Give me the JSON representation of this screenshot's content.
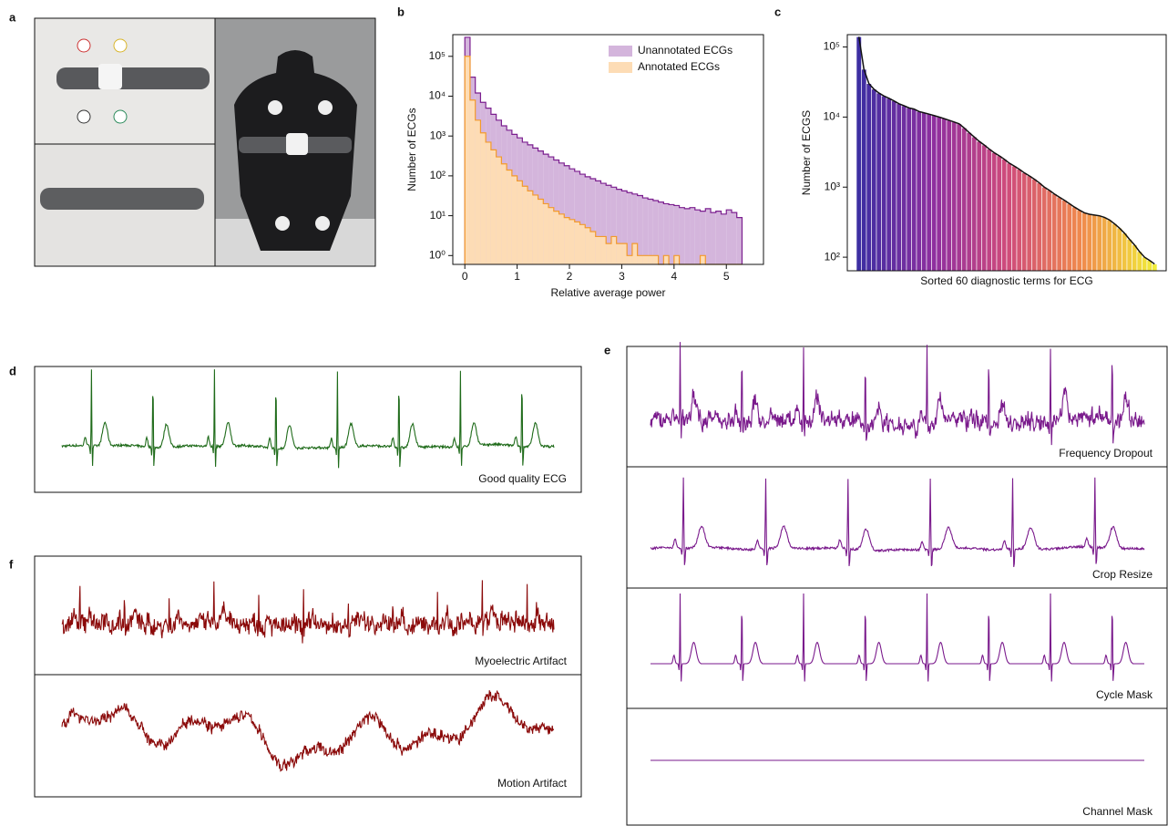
{
  "panel_letters": [
    "a",
    "b",
    "c",
    "d",
    "e",
    "f"
  ],
  "chart_data": [
    {
      "type": "histogram",
      "xlabel": "Relative average power",
      "ylabel": "Number of ECGs",
      "log_y": true,
      "legend": "upper right",
      "xlim": [
        -0.23,
        5.71
      ],
      "ylim": [
        0.6,
        350000
      ],
      "xticks": [
        0,
        1,
        2,
        3,
        4,
        5
      ],
      "yticks": [
        {
          "value": 1,
          "label": "10⁰"
        },
        {
          "value": 10,
          "label": "10¹"
        },
        {
          "value": 100,
          "label": "10²"
        },
        {
          "value": 1000,
          "label": "10³"
        },
        {
          "value": 10000,
          "label": "10⁴"
        },
        {
          "value": 100000,
          "label": "10⁵"
        }
      ],
      "bins": [
        0,
        0.1,
        0.2,
        0.3,
        0.4,
        0.5,
        0.6,
        0.7,
        0.8,
        0.9,
        1.0,
        1.1,
        1.2,
        1.3,
        1.4,
        1.5,
        1.6,
        1.7,
        1.8,
        1.9,
        2.0,
        2.1,
        2.2,
        2.3,
        2.4,
        2.5,
        2.6,
        2.7,
        2.8,
        2.9,
        3.0,
        3.1,
        3.2,
        3.3,
        3.4,
        3.5,
        3.6,
        3.7,
        3.8,
        3.9,
        4.0,
        4.1,
        4.2,
        4.3,
        4.4,
        4.5,
        4.6,
        4.7,
        4.8,
        4.9,
        5.0,
        5.1,
        5.2,
        5.3
      ],
      "series": [
        {
          "name": "Unannotated ECGs",
          "color": "#d4b5dc",
          "edge_color": "#7b1f8f",
          "values": [
            300000,
            30000,
            12000,
            7000,
            5000,
            3500,
            2500,
            1800,
            1400,
            1100,
            900,
            700,
            600,
            500,
            420,
            350,
            300,
            250,
            210,
            180,
            150,
            130,
            110,
            95,
            85,
            75,
            65,
            58,
            52,
            46,
            42,
            38,
            35,
            32,
            28,
            26,
            24,
            22,
            20,
            19,
            18,
            16,
            15,
            16,
            14,
            13,
            15,
            12,
            13,
            11,
            14,
            12,
            9
          ]
        },
        {
          "name": "Annotated ECGs",
          "color": "#fddcb5",
          "edge_color": "#f39a2c",
          "values": [
            100000,
            8000,
            2500,
            1200,
            700,
            450,
            300,
            200,
            140,
            100,
            75,
            55,
            42,
            33,
            26,
            20,
            16,
            13,
            11,
            9,
            8,
            7,
            6,
            5,
            4,
            3,
            3,
            2,
            3,
            2,
            2,
            1,
            2,
            1,
            1,
            1,
            1,
            0,
            1,
            0,
            1,
            0,
            0,
            0,
            0,
            1,
            0,
            0,
            0,
            0,
            0,
            0,
            0
          ]
        }
      ]
    },
    {
      "type": "bar",
      "xlabel": "Sorted 60 diagnostic terms for ECG",
      "ylabel": "Number of ECGS",
      "log_y": true,
      "ylim": [
        64,
        150000
      ],
      "yticks": [
        {
          "value": 100,
          "label": "10²"
        },
        {
          "value": 1000,
          "label": "10³"
        },
        {
          "value": 10000,
          "label": "10⁴"
        },
        {
          "value": 100000,
          "label": "10⁵"
        }
      ],
      "colormap": [
        "#3d2ea2",
        "#8e2fa0",
        "#cf4b7c",
        "#f0894d",
        "#f1ec3a"
      ],
      "outline_color": "#111111",
      "categories": [
        null,
        null,
        null,
        null,
        null,
        null,
        null,
        null,
        null,
        null,
        null,
        null,
        null,
        null,
        null,
        null,
        null,
        null,
        null,
        null,
        null,
        null,
        null,
        null,
        null,
        null,
        null,
        null,
        null,
        null,
        null,
        null,
        null,
        null,
        null,
        null,
        null,
        null,
        null,
        null,
        null,
        null,
        null,
        null,
        null,
        null,
        null,
        null,
        null,
        null,
        null,
        null,
        null,
        null,
        null,
        null,
        null,
        null,
        null,
        null
      ],
      "values": [
        140000,
        48000,
        30000,
        25000,
        22000,
        20000,
        18500,
        17000,
        15500,
        14500,
        13500,
        13000,
        12000,
        11500,
        11000,
        10500,
        10000,
        9500,
        9000,
        8500,
        8000,
        7000,
        6000,
        5200,
        4500,
        4000,
        3500,
        3100,
        2800,
        2500,
        2200,
        2000,
        1800,
        1600,
        1450,
        1300,
        1150,
        1000,
        900,
        800,
        720,
        650,
        580,
        520,
        470,
        430,
        410,
        400,
        390,
        370,
        340,
        300,
        260,
        220,
        180,
        150,
        120,
        100,
        90,
        80
      ]
    }
  ],
  "ecg_panels": {
    "d": {
      "color": "#1f6b1a",
      "labels": [
        "Good quality ECG"
      ]
    },
    "e": {
      "color": "#7a1a8c",
      "labels": [
        "Frequency Dropout",
        "Crop Resize",
        "Cycle Mask",
        "Channel Mask"
      ]
    },
    "f": {
      "color": "#8b0a0a",
      "labels": [
        "Myoelectric Artifact",
        "Motion Artifact"
      ]
    }
  }
}
